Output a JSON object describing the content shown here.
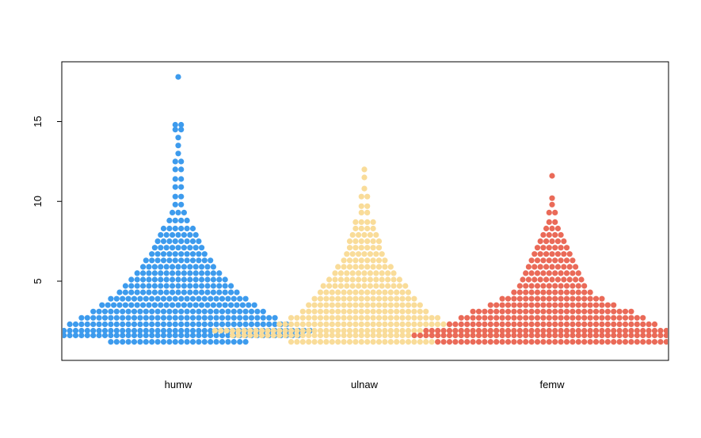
{
  "chart_data": {
    "type": "scatter",
    "subtype": "beeswarm",
    "title": "",
    "xlabel": "",
    "ylabel": "",
    "ylim": [
      0.0,
      18.5
    ],
    "y_ticks": [
      5,
      10,
      15
    ],
    "y_tick_labels": [
      "5",
      "10",
      "15"
    ],
    "grid": false,
    "legend": "none",
    "categories": [
      "humw",
      "ulnaw",
      "femw"
    ],
    "series": [
      {
        "category": "humw",
        "color": "#3d9bed",
        "bins": [
          {
            "y": 1.2,
            "count": 24
          },
          {
            "y": 1.6,
            "count": 42
          },
          {
            "y": 1.9,
            "count": 46
          },
          {
            "y": 2.3,
            "count": 38
          },
          {
            "y": 2.7,
            "count": 34
          },
          {
            "y": 3.1,
            "count": 30
          },
          {
            "y": 3.5,
            "count": 27
          },
          {
            "y": 3.9,
            "count": 24
          },
          {
            "y": 4.3,
            "count": 21
          },
          {
            "y": 4.7,
            "count": 19
          },
          {
            "y": 5.1,
            "count": 17
          },
          {
            "y": 5.5,
            "count": 15
          },
          {
            "y": 5.9,
            "count": 13
          },
          {
            "y": 6.3,
            "count": 12
          },
          {
            "y": 6.7,
            "count": 10
          },
          {
            "y": 7.1,
            "count": 9
          },
          {
            "y": 7.5,
            "count": 8
          },
          {
            "y": 7.9,
            "count": 7
          },
          {
            "y": 8.3,
            "count": 6
          },
          {
            "y": 8.8,
            "count": 4
          },
          {
            "y": 9.3,
            "count": 3
          },
          {
            "y": 9.8,
            "count": 2
          },
          {
            "y": 10.3,
            "count": 2
          },
          {
            "y": 10.9,
            "count": 2
          },
          {
            "y": 11.4,
            "count": 2
          },
          {
            "y": 12.0,
            "count": 2
          },
          {
            "y": 12.5,
            "count": 2
          },
          {
            "y": 13.0,
            "count": 1
          },
          {
            "y": 13.5,
            "count": 1
          },
          {
            "y": 14.0,
            "count": 1
          },
          {
            "y": 14.5,
            "count": 2
          },
          {
            "y": 14.8,
            "count": 2
          },
          {
            "y": 17.8,
            "count": 1
          }
        ]
      },
      {
        "category": "ulnaw",
        "color": "#f9dc99",
        "bins": [
          {
            "y": 1.2,
            "count": 26
          },
          {
            "y": 1.6,
            "count": 46
          },
          {
            "y": 1.9,
            "count": 52
          },
          {
            "y": 2.3,
            "count": 30
          },
          {
            "y": 2.7,
            "count": 26
          },
          {
            "y": 3.1,
            "count": 22
          },
          {
            "y": 3.5,
            "count": 20
          },
          {
            "y": 3.9,
            "count": 18
          },
          {
            "y": 4.3,
            "count": 16
          },
          {
            "y": 4.7,
            "count": 15
          },
          {
            "y": 5.1,
            "count": 13
          },
          {
            "y": 5.5,
            "count": 11
          },
          {
            "y": 5.9,
            "count": 10
          },
          {
            "y": 6.3,
            "count": 8
          },
          {
            "y": 6.7,
            "count": 7
          },
          {
            "y": 7.1,
            "count": 6
          },
          {
            "y": 7.5,
            "count": 6
          },
          {
            "y": 7.9,
            "count": 5
          },
          {
            "y": 8.3,
            "count": 4
          },
          {
            "y": 8.7,
            "count": 4
          },
          {
            "y": 9.3,
            "count": 2
          },
          {
            "y": 9.7,
            "count": 2
          },
          {
            "y": 10.3,
            "count": 2
          },
          {
            "y": 10.8,
            "count": 1
          },
          {
            "y": 11.5,
            "count": 1
          },
          {
            "y": 12.0,
            "count": 1
          }
        ]
      },
      {
        "category": "femw",
        "color": "#ea6a58",
        "bins": [
          {
            "y": 1.2,
            "count": 40
          },
          {
            "y": 1.6,
            "count": 48
          },
          {
            "y": 1.9,
            "count": 44
          },
          {
            "y": 2.3,
            "count": 36
          },
          {
            "y": 2.7,
            "count": 32
          },
          {
            "y": 3.1,
            "count": 28
          },
          {
            "y": 3.5,
            "count": 22
          },
          {
            "y": 3.9,
            "count": 18
          },
          {
            "y": 4.3,
            "count": 14
          },
          {
            "y": 4.7,
            "count": 12
          },
          {
            "y": 5.1,
            "count": 11
          },
          {
            "y": 5.5,
            "count": 10
          },
          {
            "y": 5.9,
            "count": 9
          },
          {
            "y": 6.3,
            "count": 8
          },
          {
            "y": 6.7,
            "count": 7
          },
          {
            "y": 7.1,
            "count": 6
          },
          {
            "y": 7.5,
            "count": 5
          },
          {
            "y": 7.9,
            "count": 4
          },
          {
            "y": 8.3,
            "count": 3
          },
          {
            "y": 8.7,
            "count": 2
          },
          {
            "y": 9.3,
            "count": 2
          },
          {
            "y": 9.8,
            "count": 1
          },
          {
            "y": 10.2,
            "count": 1
          },
          {
            "y": 11.6,
            "count": 1
          }
        ]
      }
    ]
  }
}
